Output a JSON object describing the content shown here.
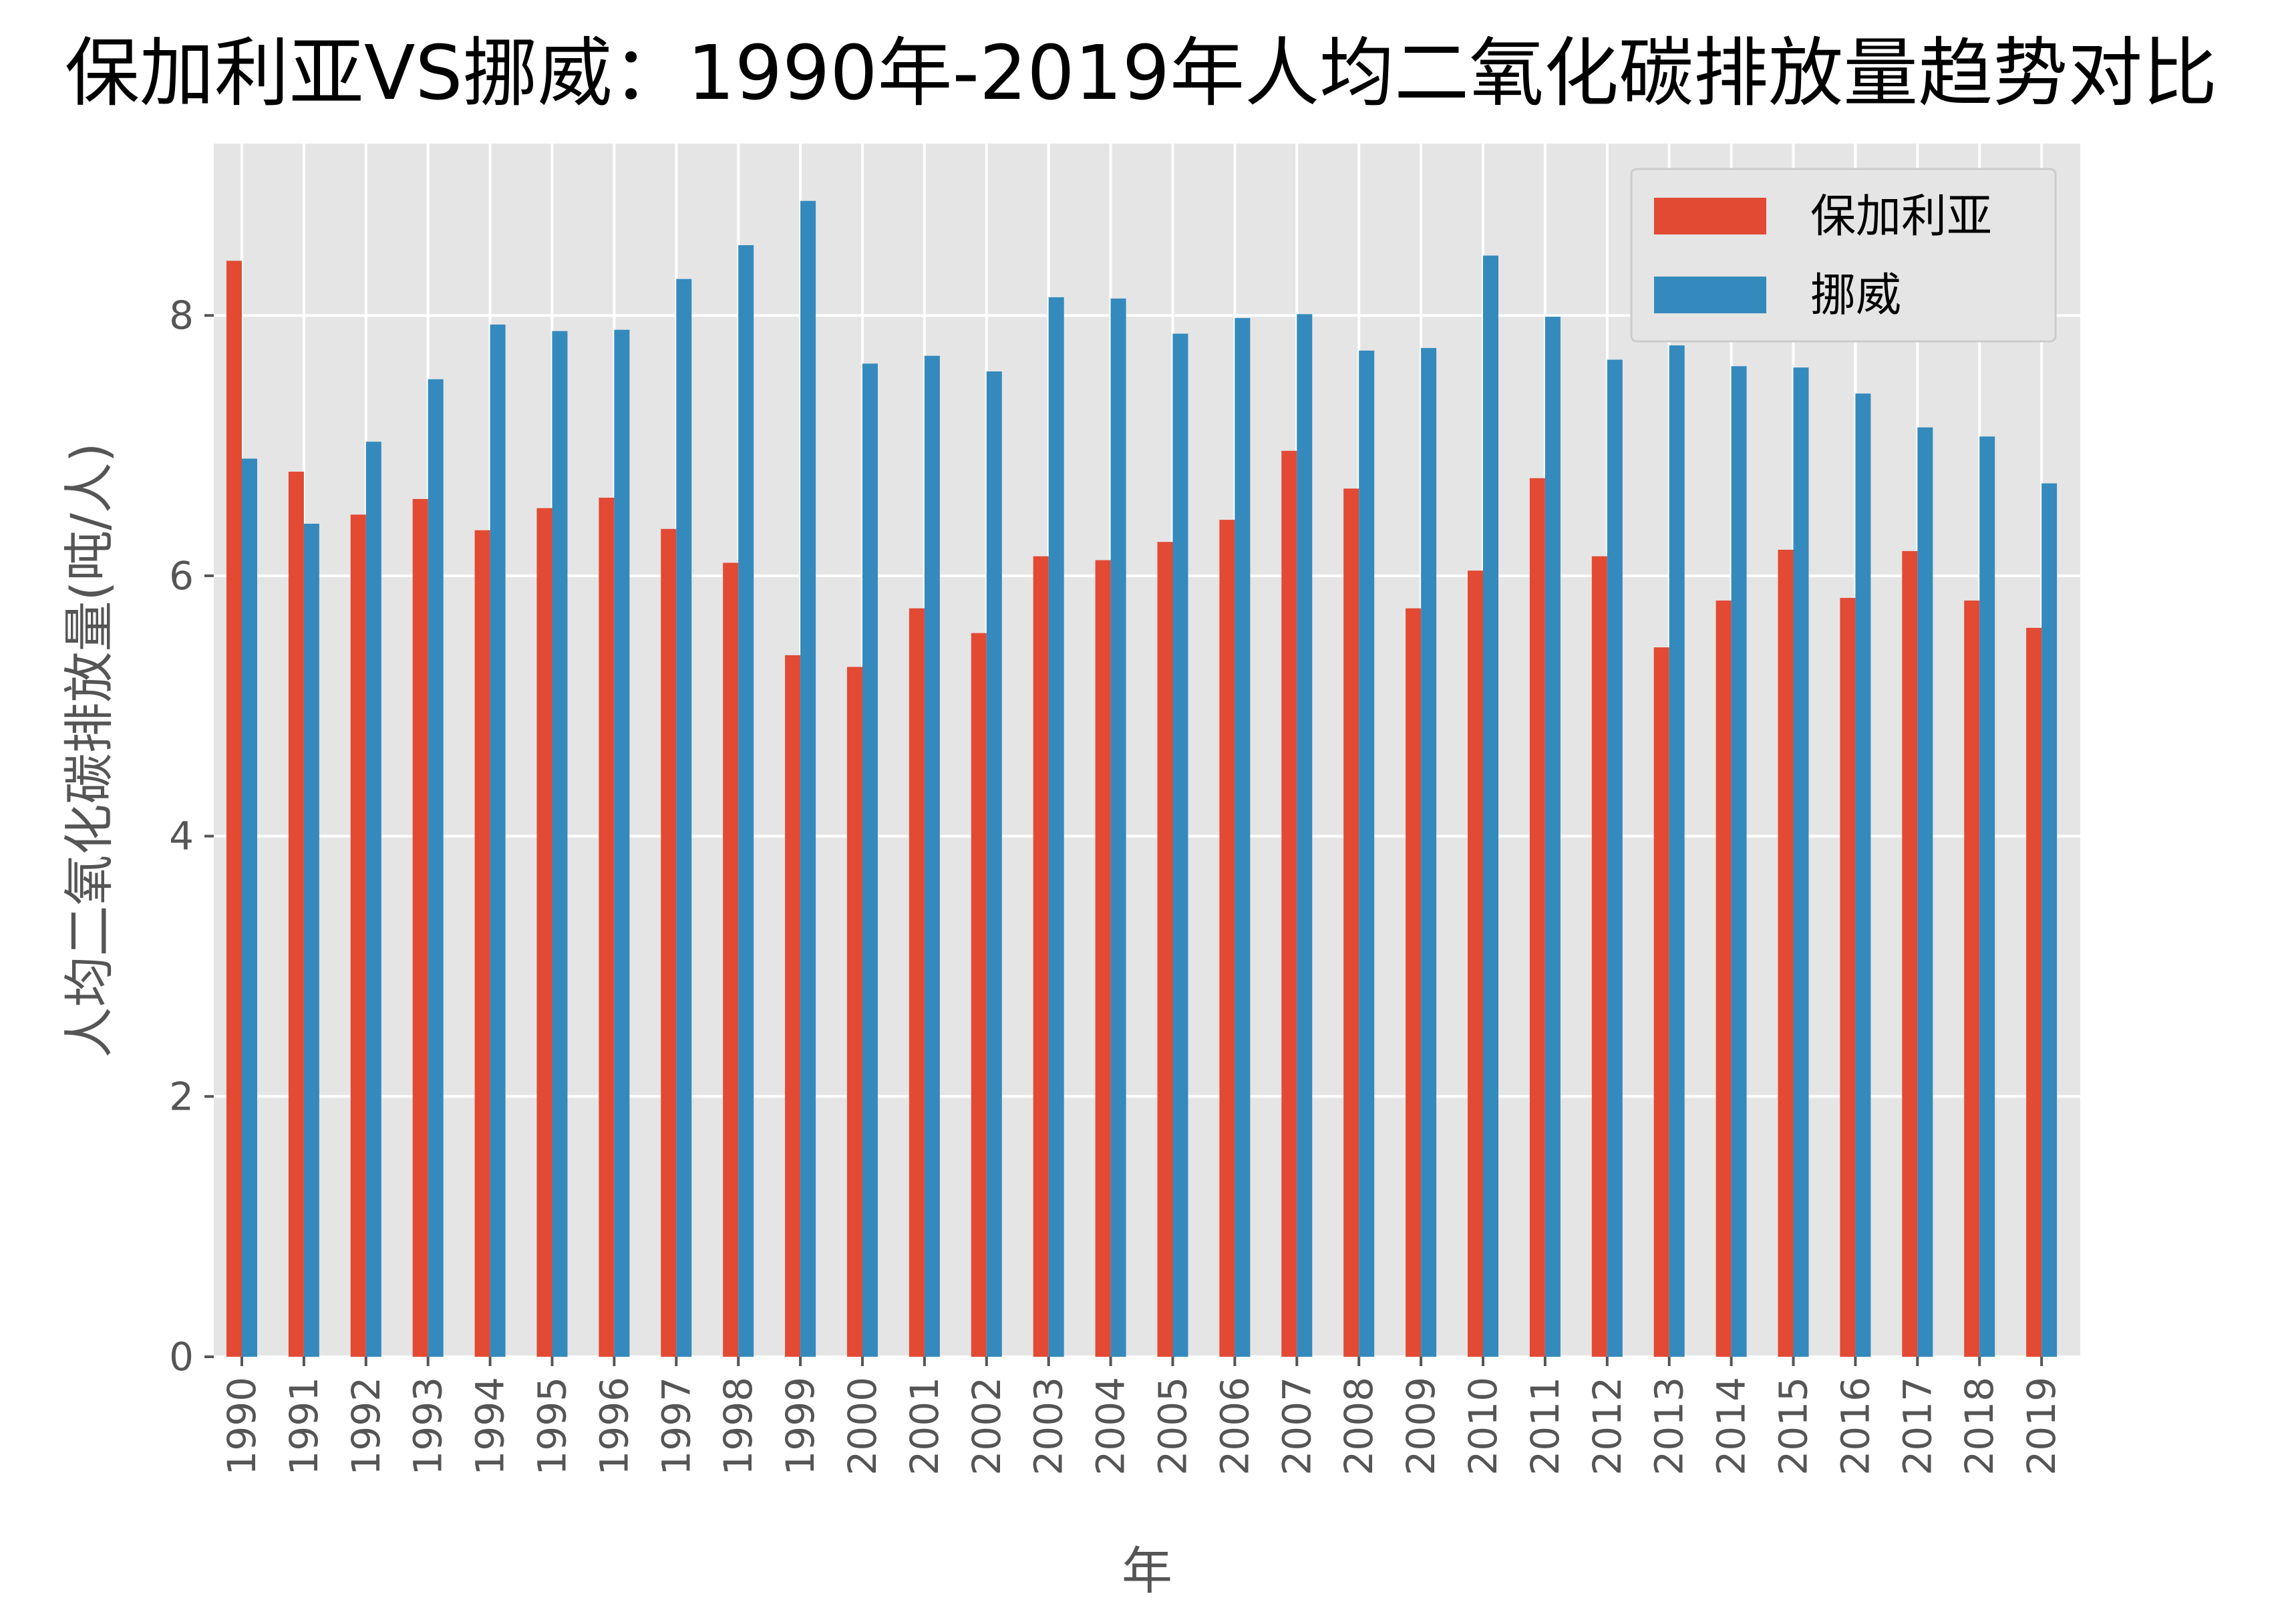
{
  "chart_data": {
    "type": "bar",
    "title": "保加利亚VS挪威：1990年-2019年人均二氧化碳排放量趋势对比",
    "xlabel": "年",
    "ylabel": "人均二氧化碳排放量(吨/人)",
    "categories": [
      "1990",
      "1991",
      "1992",
      "1993",
      "1994",
      "1995",
      "1996",
      "1997",
      "1998",
      "1999",
      "2000",
      "2001",
      "2002",
      "2003",
      "2004",
      "2005",
      "2006",
      "2007",
      "2008",
      "2009",
      "2010",
      "2011",
      "2012",
      "2013",
      "2014",
      "2015",
      "2016",
      "2017",
      "2018",
      "2019"
    ],
    "series": [
      {
        "name": "保加利亚",
        "color": "#E24A33",
        "values": [
          8.42,
          6.8,
          6.47,
          6.59,
          6.35,
          6.52,
          6.6,
          6.36,
          6.1,
          5.39,
          5.3,
          5.75,
          5.56,
          6.15,
          6.12,
          6.26,
          6.43,
          6.96,
          6.67,
          5.75,
          6.04,
          6.75,
          6.15,
          5.45,
          5.81,
          6.2,
          5.83,
          6.19,
          5.81,
          5.6
        ]
      },
      {
        "name": "挪威",
        "color": "#348ABD",
        "values": [
          6.9,
          6.4,
          7.03,
          7.51,
          7.93,
          7.88,
          7.89,
          8.28,
          8.54,
          8.88,
          7.63,
          7.69,
          7.57,
          8.14,
          8.13,
          7.86,
          7.98,
          8.01,
          7.73,
          7.75,
          8.46,
          7.99,
          7.66,
          7.77,
          7.61,
          7.6,
          7.4,
          7.14,
          7.07,
          6.71
        ]
      }
    ],
    "ylim": [
      0,
      9.32
    ],
    "yticks": [
      0,
      2,
      4,
      6,
      8
    ],
    "grid": true,
    "legend_position": "top-right"
  }
}
